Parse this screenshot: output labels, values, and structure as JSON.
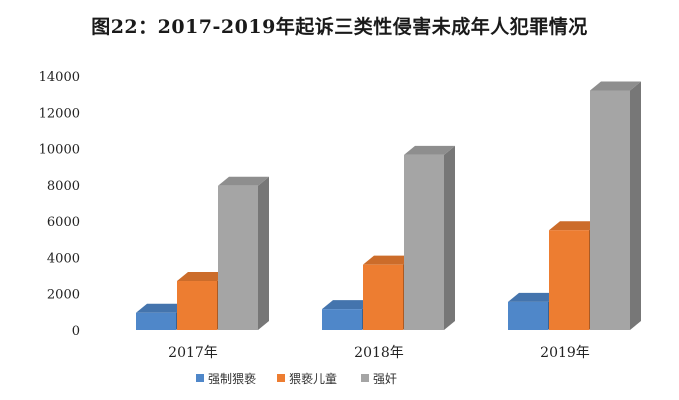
{
  "chart_data": {
    "type": "bar",
    "title": "图22：2017-2019年起诉三类性侵害未成年人犯罪情况",
    "categories": [
      "2017年",
      "2018年",
      "2019年"
    ],
    "series": [
      {
        "name": "强制猥亵",
        "color": "#4f87c9",
        "values": [
          950,
          1150,
          1550
        ]
      },
      {
        "name": "猥亵儿童",
        "color": "#ed7d31",
        "values": [
          2700,
          3600,
          5500
        ]
      },
      {
        "name": "强奸",
        "color": "#a5a5a5",
        "values": [
          7950,
          9650,
          13200
        ]
      }
    ],
    "yticks": [
      "0",
      "2000",
      "4000",
      "6000",
      "8000",
      "10000",
      "12000",
      "14000"
    ],
    "ylim": [
      0,
      14000
    ],
    "legend_position": "bottom",
    "grid": false,
    "style": "3d-column"
  }
}
